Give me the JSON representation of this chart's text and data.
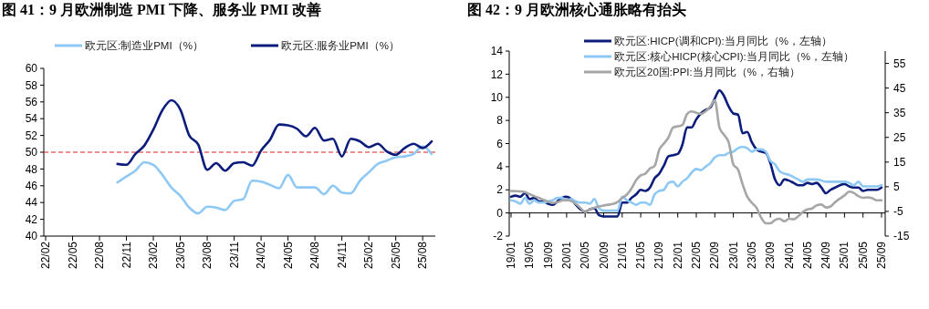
{
  "chart_data": [
    {
      "type": "line",
      "title": "图 41：9 月欧洲制造 PMI 下降、服务业 PMI 改善",
      "categories": [
        "22/02",
        null,
        null,
        "22/05",
        null,
        null,
        "22/08",
        null,
        null,
        "22/11",
        null,
        null,
        "23/02",
        null,
        null,
        "23/05",
        null,
        null,
        "23/08",
        null,
        null,
        "23/11",
        null,
        null,
        "24/02",
        null,
        null,
        "24/05",
        null,
        null,
        "24/08",
        null,
        null,
        "24/11",
        null,
        null,
        "25/02",
        null,
        null,
        "25/05",
        null,
        null,
        "25/08",
        null
      ],
      "series": [
        {
          "name": "欧元区:制造业PMI（%）",
          "color": "#8ec8f5",
          "values": [
            null,
            null,
            null,
            null,
            null,
            null,
            null,
            null,
            46.4,
            47.1,
            47.8,
            48.8,
            48.5,
            47.3,
            45.8,
            44.8,
            43.4,
            42.7,
            43.5,
            43.4,
            43.1,
            44.2,
            44.4,
            46.6,
            46.5,
            46.1,
            45.7,
            47.3,
            45.8,
            45.8,
            45.8,
            45.0,
            46.0,
            45.2,
            45.1,
            46.6,
            47.6,
            48.6,
            49.0,
            49.4,
            49.5,
            49.8,
            50.7,
            49.8
          ]
        },
        {
          "name": "欧元区:服务业PMI（%）",
          "color": "#0c1c7c",
          "values": [
            null,
            null,
            null,
            null,
            null,
            null,
            null,
            null,
            48.6,
            48.5,
            49.8,
            50.8,
            52.7,
            55.0,
            56.2,
            55.1,
            52.0,
            50.9,
            47.9,
            48.7,
            47.8,
            48.7,
            48.8,
            48.4,
            50.2,
            51.5,
            53.3,
            53.2,
            52.8,
            51.9,
            52.9,
            51.4,
            51.6,
            49.5,
            51.6,
            51.3,
            50.6,
            51.0,
            50.1,
            49.7,
            50.5,
            51.0,
            50.5,
            51.3
          ]
        }
      ],
      "ylim": [
        40,
        60
      ],
      "yticks": [
        40,
        42,
        44,
        46,
        48,
        50,
        52,
        54,
        56,
        58,
        60
      ],
      "ref_lines": [
        {
          "axis": "y",
          "value": 50,
          "color": "#e02020",
          "line_style": "dashed"
        }
      ],
      "legend": "top",
      "grid": false
    },
    {
      "type": "line",
      "title": "图 42：9 月欧洲核心通胀略有抬头",
      "categories": [
        "19/01",
        null,
        null,
        null,
        "19/05",
        null,
        null,
        null,
        "19/09",
        null,
        null,
        null,
        "20/01",
        null,
        null,
        null,
        "20/05",
        null,
        null,
        null,
        "20/09",
        null,
        null,
        null,
        "21/01",
        null,
        null,
        null,
        "21/05",
        null,
        null,
        null,
        "21/09",
        null,
        null,
        null,
        "22/01",
        null,
        null,
        null,
        "22/05",
        null,
        null,
        null,
        "22/09",
        null,
        null,
        null,
        "23/01",
        null,
        null,
        null,
        "23/05",
        null,
        null,
        null,
        "23/09",
        null,
        null,
        null,
        "24/01",
        null,
        null,
        null,
        "24/05",
        null,
        null,
        null,
        "24/09",
        null,
        null,
        null,
        "25/01",
        null,
        null,
        null,
        "25/05",
        null,
        null,
        null,
        "25/09"
      ],
      "series": [
        {
          "name": "欧元区:HICP(调和CPI):当月同比（%，左轴）",
          "color": "#0c1c7c",
          "values": [
            1.4,
            1.5,
            1.4,
            1.7,
            1.2,
            1.3,
            1.0,
            1.0,
            0.8,
            0.7,
            1.0,
            1.3,
            1.4,
            1.2,
            0.7,
            0.3,
            0.1,
            0.3,
            0.4,
            -0.2,
            -0.3,
            -0.3,
            -0.3,
            -0.3,
            0.9,
            0.9,
            1.3,
            1.6,
            2.0,
            1.9,
            2.2,
            3.0,
            3.4,
            4.1,
            4.9,
            5.0,
            5.1,
            5.9,
            7.4,
            7.4,
            8.1,
            8.6,
            8.9,
            9.1,
            9.9,
            10.6,
            10.1,
            9.2,
            8.6,
            8.5,
            6.9,
            7.0,
            6.1,
            5.5,
            5.3,
            5.2,
            4.3,
            2.9,
            2.4,
            2.9,
            2.8,
            2.6,
            2.4,
            2.4,
            2.6,
            2.5,
            2.6,
            2.2,
            1.7,
            2.0,
            2.2,
            2.4,
            2.5,
            2.3,
            2.2,
            2.2,
            1.9,
            2.0,
            2.0,
            2.0,
            2.2
          ]
        },
        {
          "name": "欧元区:核心HICP(核心CPI):当月同比（%，左轴）",
          "color": "#8ec8f5",
          "values": [
            1.1,
            1.0,
            0.8,
            1.3,
            0.8,
            1.1,
            0.9,
            0.9,
            1.0,
            1.1,
            1.3,
            1.3,
            1.1,
            1.2,
            1.0,
            0.9,
            0.9,
            0.8,
            1.2,
            0.4,
            0.2,
            0.2,
            0.2,
            0.2,
            1.4,
            1.1,
            0.9,
            0.7,
            0.9,
            0.9,
            0.7,
            1.6,
            1.9,
            2.0,
            2.6,
            2.7,
            2.3,
            2.7,
            3.0,
            3.5,
            3.8,
            3.7,
            4.0,
            4.3,
            4.8,
            5.0,
            5.0,
            5.2,
            5.3,
            5.6,
            5.7,
            5.6,
            5.3,
            5.5,
            5.5,
            5.3,
            4.5,
            4.2,
            3.6,
            3.4,
            3.3,
            3.1,
            2.9,
            2.7,
            2.9,
            2.9,
            2.9,
            2.8,
            2.7,
            2.7,
            2.7,
            2.7,
            2.7,
            2.6,
            2.4,
            2.7,
            2.3,
            2.3,
            2.3,
            2.3,
            2.4
          ]
        },
        {
          "name": "欧元区20国:PPI:当月同比（%，右轴）",
          "color": "#a6a6a6",
          "axis": "y2",
          "values": [
            3.3,
            3.2,
            3.1,
            2.8,
            2.0,
            1.2,
            0.5,
            -0.3,
            -1.0,
            -1.6,
            -1.2,
            -0.6,
            -0.4,
            -0.8,
            -2.0,
            -3.6,
            -5.3,
            -4.2,
            -3.5,
            -3.0,
            -2.6,
            -2.3,
            -2.0,
            -1.2,
            0.5,
            1.8,
            4.3,
            7.6,
            9.6,
            10.3,
            12.4,
            13.4,
            20,
            22.5,
            25,
            29,
            29.5,
            30,
            34.5,
            35.5,
            35,
            34.5,
            35.5,
            37.5,
            40,
            29,
            26,
            23,
            14,
            12,
            6,
            1,
            -1.5,
            -3.5,
            -7.5,
            -9.8,
            -9.8,
            -8.5,
            -8,
            -9,
            -8,
            -8.2,
            -7,
            -5.2,
            -4.2,
            -3.8,
            -2.5,
            -2.2,
            -3.4,
            -3,
            -1.2,
            0.2,
            1.5,
            3,
            2.5,
            1.2,
            0.5,
            0.7,
            0.3,
            -0.5,
            -0.5
          ]
        }
      ],
      "ylim": [
        -2,
        14
      ],
      "yticks": [
        -2,
        0,
        2,
        4,
        6,
        8,
        10,
        12,
        14
      ],
      "y2lim": [
        -15,
        60
      ],
      "y2ticks": [
        -15,
        -5,
        5,
        15,
        25,
        35,
        45,
        55
      ],
      "legend": "top"
    }
  ]
}
